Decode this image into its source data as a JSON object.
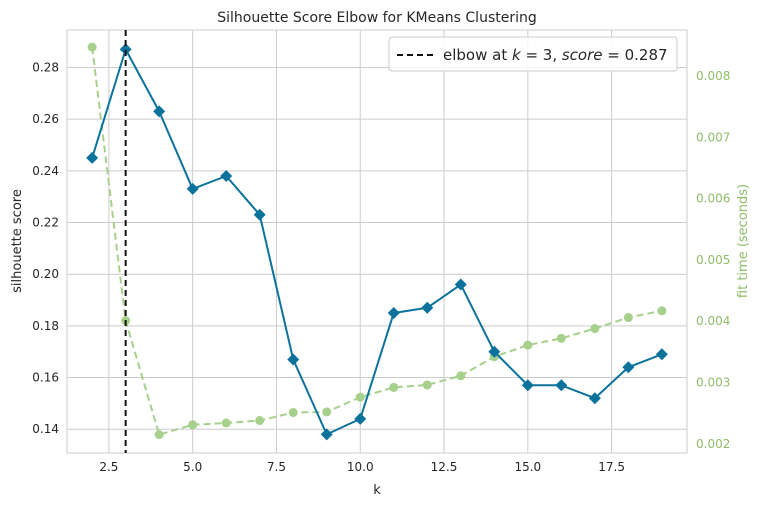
{
  "chart_data": {
    "type": "line",
    "title": "Silhouette Score Elbow for KMeans Clustering",
    "xlabel": "k",
    "ylabel": "silhouette score",
    "y2label": "fit time (seconds)",
    "xlim": [
      1.25,
      19.75
    ],
    "ylim": [
      0.1308,
      0.2945
    ],
    "y2lim": [
      0.00185,
      0.00875
    ],
    "xticks": [
      2.5,
      5.0,
      7.5,
      10.0,
      12.5,
      15.0,
      17.5
    ],
    "xtick_labels": [
      "2.5",
      "5.0",
      "7.5",
      "10.0",
      "12.5",
      "15.0",
      "17.5"
    ],
    "yticks": [
      0.14,
      0.16,
      0.18,
      0.2,
      0.22,
      0.24,
      0.26,
      0.28
    ],
    "ytick_labels": [
      "0.14",
      "0.16",
      "0.18",
      "0.20",
      "0.22",
      "0.24",
      "0.26",
      "0.28"
    ],
    "y2ticks": [
      0.002,
      0.003,
      0.004,
      0.005,
      0.006,
      0.007,
      0.008
    ],
    "y2tick_labels": [
      "0.002",
      "0.003",
      "0.004",
      "0.005",
      "0.006",
      "0.007",
      "0.008"
    ],
    "grid": true,
    "legend_position": "top-right",
    "series": [
      {
        "axis": "left",
        "color": "#0b729c",
        "marker": "diamond",
        "line_style": "solid",
        "x": [
          2,
          3,
          4,
          5,
          6,
          7,
          8,
          9,
          10,
          11,
          12,
          13,
          14,
          15,
          16,
          17,
          18,
          19
        ],
        "values": [
          0.245,
          0.287,
          0.263,
          0.233,
          0.238,
          0.223,
          0.167,
          0.138,
          0.144,
          0.185,
          0.187,
          0.196,
          0.17,
          0.157,
          0.157,
          0.152,
          0.164,
          0.169
        ]
      },
      {
        "axis": "right",
        "color": "#a6d08b",
        "marker": "circle",
        "line_style": "dashed",
        "x": [
          2,
          3,
          4,
          5,
          6,
          7,
          8,
          9,
          10,
          11,
          12,
          13,
          14,
          15,
          16,
          17,
          18,
          19
        ],
        "values": [
          0.00847,
          0.00401,
          0.00215,
          0.00231,
          0.00234,
          0.00238,
          0.00251,
          0.00252,
          0.00276,
          0.00292,
          0.00296,
          0.00311,
          0.00342,
          0.00361,
          0.00372,
          0.00388,
          0.00406,
          0.00417
        ]
      }
    ],
    "elbow": {
      "k": 3,
      "score": 0.287,
      "legend_label_prefix": "elbow at ",
      "legend_k": "k",
      "legend_k_value": " = 3, ",
      "legend_score": "score",
      "legend_score_value": " = 0.287",
      "color": "#111111"
    }
  }
}
